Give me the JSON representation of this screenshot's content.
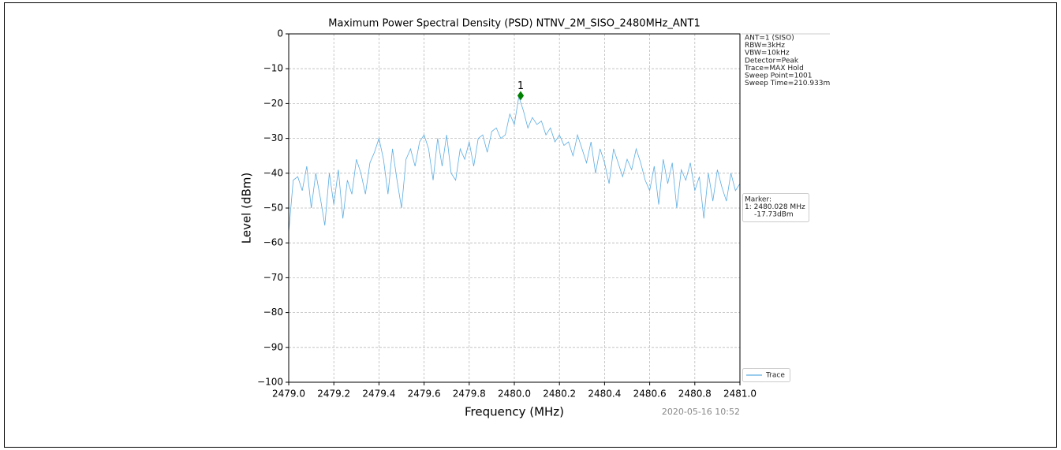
{
  "chart_data": {
    "type": "line",
    "title": "Maximum Power Spectral Density (PSD) NTNV_2M_SISO_2480MHz_ANT1",
    "x_label": "Frequency (MHz)",
    "y_label": "Level (dBm)",
    "xlim": [
      2479,
      2481
    ],
    "ylim": [
      -100,
      0
    ],
    "xticks": [
      {
        "value": 2479,
        "label": "2479.0"
      },
      {
        "value": 2479.2,
        "label": "2479.2"
      },
      {
        "value": 2479.4,
        "label": "2479.4"
      },
      {
        "value": 2479.6,
        "label": "2479.6"
      },
      {
        "value": 2479.8,
        "label": "2479.8"
      },
      {
        "value": 2480,
        "label": "2480.0"
      },
      {
        "value": 2480.2,
        "label": "2480.2"
      },
      {
        "value": 2480.4,
        "label": "2480.4"
      },
      {
        "value": 2480.6,
        "label": "2480.6"
      },
      {
        "value": 2480.8,
        "label": "2480.8"
      },
      {
        "value": 2481,
        "label": "2481.0"
      }
    ],
    "yticks": [
      0,
      {
        "value": -10,
        "label": "−10"
      },
      {
        "value": -20,
        "label": "−20"
      },
      {
        "value": -30,
        "label": "−30"
      },
      {
        "value": -40,
        "label": "−40"
      },
      {
        "value": -50,
        "label": "−50"
      },
      {
        "value": -60,
        "label": "−60"
      },
      {
        "value": -70,
        "label": "−70"
      },
      {
        "value": -80,
        "label": "−80"
      },
      {
        "value": -90,
        "label": "−90"
      },
      {
        "value": -100,
        "label": "−100"
      }
    ],
    "grid": true,
    "legend": "lower right",
    "x": [
      2479.0,
      2479.02,
      2479.04,
      2479.06,
      2479.08,
      2479.1,
      2479.12,
      2479.14,
      2479.16,
      2479.18,
      2479.2,
      2479.22,
      2479.24,
      2479.26,
      2479.28,
      2479.3,
      2479.32,
      2479.34,
      2479.36,
      2479.38,
      2479.4,
      2479.42,
      2479.44,
      2479.46,
      2479.48,
      2479.5,
      2479.52,
      2479.54,
      2479.56,
      2479.58,
      2479.6,
      2479.62,
      2479.64,
      2479.66,
      2479.68,
      2479.7,
      2479.72,
      2479.74,
      2479.76,
      2479.78,
      2479.8,
      2479.82,
      2479.84,
      2479.86,
      2479.88,
      2479.9,
      2479.92,
      2479.94,
      2479.96,
      2479.98,
      2480.0,
      2480.02,
      2480.04,
      2480.06,
      2480.08,
      2480.1,
      2480.12,
      2480.14,
      2480.16,
      2480.18,
      2480.2,
      2480.22,
      2480.24,
      2480.26,
      2480.28,
      2480.3,
      2480.32,
      2480.34,
      2480.36,
      2480.38,
      2480.4,
      2480.42,
      2480.44,
      2480.46,
      2480.48,
      2480.5,
      2480.52,
      2480.54,
      2480.56,
      2480.58,
      2480.6,
      2480.62,
      2480.64,
      2480.66,
      2480.68,
      2480.7,
      2480.72,
      2480.74,
      2480.76,
      2480.78,
      2480.8,
      2480.82,
      2480.84,
      2480.86,
      2480.88,
      2480.9,
      2480.92,
      2480.94,
      2480.96,
      2480.98,
      2481.0
    ],
    "series": [
      {
        "name": "Trace",
        "color": "#5dade2",
        "values": [
          -57,
          -42,
          -41,
          -45,
          -38,
          -50,
          -40,
          -47,
          -55,
          -40,
          -49,
          -39,
          -53,
          -42,
          -46,
          -36,
          -40,
          -46,
          -37,
          -34,
          -30,
          -36,
          -46,
          -33,
          -42,
          -50,
          -36,
          -33,
          -38,
          -31,
          -29,
          -33,
          -42,
          -30,
          -38,
          -29,
          -40,
          -42,
          -33,
          -36,
          -31,
          -38,
          -30,
          -29,
          -34,
          -28,
          -27,
          -30,
          -29,
          -23,
          -26,
          -18,
          -22,
          -27,
          -24,
          -26,
          -25,
          -29,
          -27,
          -31,
          -29,
          -32,
          -31,
          -35,
          -29,
          -33,
          -37,
          -31,
          -40,
          -33,
          -37,
          -43,
          -33,
          -37,
          -41,
          -36,
          -39,
          -33,
          -37,
          -42,
          -45,
          -38,
          -49,
          -36,
          -43,
          -37,
          -50,
          -39,
          -42,
          -37,
          -45,
          -41,
          -53,
          -40,
          -48,
          -39,
          -44,
          -48,
          -40,
          -45,
          -43
        ]
      }
    ],
    "marker": {
      "label": "1",
      "x": 2480.028,
      "y": -17.73,
      "color": "#008000"
    },
    "info": [
      "ANT=1 (SISO)",
      "RBW=3kHz",
      "VBW=10kHz",
      "Detector=Peak",
      "Trace=MAX Hold",
      "Sweep Point=1001",
      "Sweep Time=210.933m"
    ],
    "marker_info": [
      "Marker:",
      "1: 2480.028 MHz",
      "-17.73dBm"
    ],
    "timestamp": "2020-05-16 10:52"
  }
}
